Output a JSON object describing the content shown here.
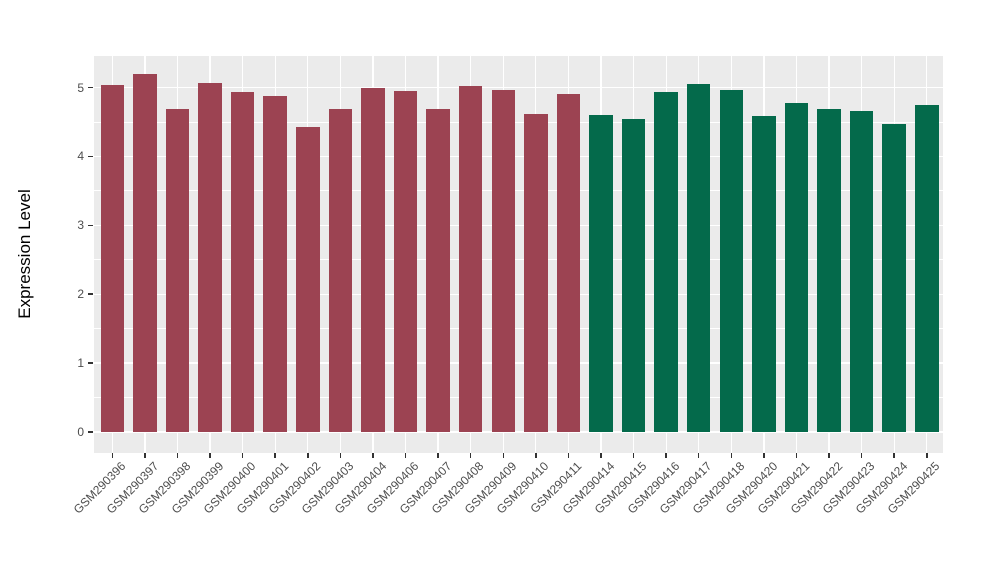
{
  "figure": {
    "background": "#FFFFFF",
    "panel_background": "#EBEBEB",
    "grid_color": "#FFFFFF",
    "tick_color": "#333333",
    "tick_label_color": "#4D4D4D",
    "axis_title_color": "#000000"
  },
  "chart_data": {
    "type": "bar",
    "title": "",
    "xlabel": "",
    "ylabel": "Expression Level",
    "categories": [
      "GSM290396",
      "GSM290397",
      "GSM290398",
      "GSM290399",
      "GSM290400",
      "GSM290401",
      "GSM290402",
      "GSM290403",
      "GSM290404",
      "GSM290406",
      "GSM290407",
      "GSM290408",
      "GSM290409",
      "GSM290410",
      "GSM290411",
      "GSM290414",
      "GSM290415",
      "GSM290416",
      "GSM290417",
      "GSM290418",
      "GSM290420",
      "GSM290421",
      "GSM290422",
      "GSM290423",
      "GSM290424",
      "GSM290425"
    ],
    "values": [
      5.03,
      5.19,
      4.69,
      5.06,
      4.93,
      4.87,
      4.42,
      4.69,
      5.0,
      4.95,
      4.69,
      5.02,
      4.96,
      4.62,
      4.91,
      4.6,
      4.55,
      4.94,
      5.05,
      4.96,
      4.59,
      4.78,
      4.69,
      4.66,
      4.47,
      4.74
    ],
    "bar_colors": [
      "#9C4352",
      "#9C4352",
      "#9C4352",
      "#9C4352",
      "#9C4352",
      "#9C4352",
      "#9C4352",
      "#9C4352",
      "#9C4352",
      "#9C4352",
      "#9C4352",
      "#9C4352",
      "#9C4352",
      "#9C4352",
      "#9C4352",
      "#046A4B",
      "#046A4B",
      "#046A4B",
      "#046A4B",
      "#046A4B",
      "#046A4B",
      "#046A4B",
      "#046A4B",
      "#046A4B",
      "#046A4B",
      "#046A4B"
    ],
    "group_colors": {
      "left_group": "#9C4352",
      "right_group": "#046A4B"
    },
    "yticks": [
      0,
      1,
      2,
      3,
      4,
      5
    ],
    "ylim": [
      -0.3,
      5.45
    ],
    "grid": "on",
    "legend": "none",
    "x_tick_rotation": 45
  }
}
